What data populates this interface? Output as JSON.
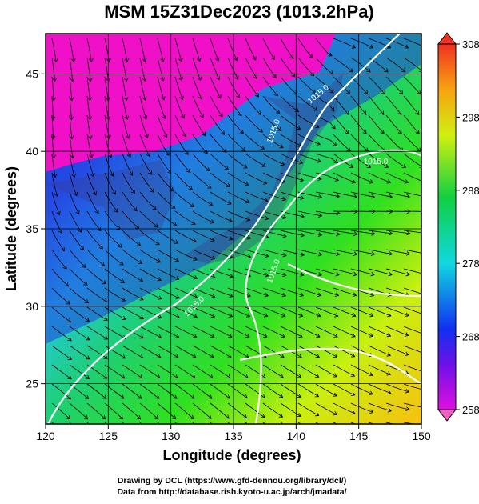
{
  "title": "MSM 15Z31Dec2023 (1013.2hPa)",
  "x_label": "Longitude (degrees)",
  "y_label": "Latitude  (degrees)",
  "xlim": [
    120,
    150
  ],
  "xticks": [
    120,
    125,
    130,
    135,
    140,
    145,
    150
  ],
  "ylim": [
    22.4,
    47.6
  ],
  "yticks": [
    25,
    30,
    35,
    40,
    45
  ],
  "grid": true,
  "colorbar": {
    "lim": [
      258,
      308
    ],
    "ticks": [
      258,
      268,
      278,
      288,
      298,
      308
    ]
  },
  "contour_labels": [
    "1015.0",
    "1015.0",
    "1015.0",
    "1015.0",
    "1015.0"
  ],
  "footer": [
    "Drawing by DCL (https://www.gfd-dennou.org/library/dcl/)",
    "Data from http://database.rish.kyoto-u.ac.jp/arch/jmadata/"
  ]
}
